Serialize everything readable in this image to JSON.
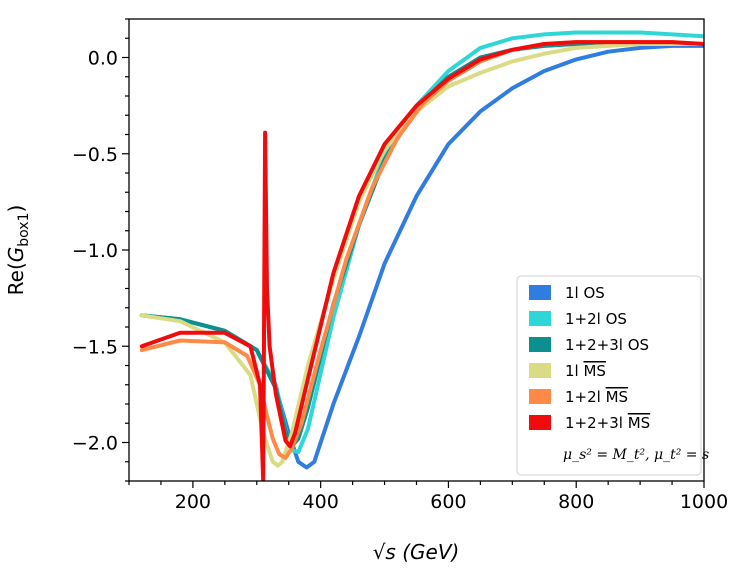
{
  "chart_data": {
    "type": "line",
    "title": "",
    "xlabel": "√s (GeV)",
    "ylabel": "Re(G_box1)",
    "xlim": [
      100,
      1000
    ],
    "ylim": [
      -2.2,
      0.2
    ],
    "x_ticks": [
      200,
      400,
      600,
      800,
      1000
    ],
    "x_tick_labels": [
      "200",
      "400",
      "600",
      "800",
      "1000"
    ],
    "y_ticks": [
      0.0,
      -0.5,
      -1.0,
      -1.5,
      -2.0
    ],
    "y_tick_labels": [
      "0.0",
      "−0.5",
      "−1.0",
      "−1.5",
      "−2.0"
    ],
    "grid": false,
    "legend_position": "bottom-right",
    "legend_note": "μ_s² = M_t², μ_t² = s",
    "series": [
      {
        "name": "1l OS",
        "label_prefix": "1l OS",
        "label_overline": "",
        "color": "#2f7de1",
        "x": [
          120,
          180,
          250,
          300,
          330,
          350,
          365,
          378,
          390,
          420,
          460,
          500,
          550,
          600,
          650,
          700,
          750,
          800,
          850,
          900,
          950,
          1000
        ],
        "y": [
          -1.34,
          -1.36,
          -1.42,
          -1.52,
          -1.72,
          -1.95,
          -2.1,
          -2.13,
          -2.1,
          -1.8,
          -1.45,
          -1.07,
          -0.72,
          -0.45,
          -0.28,
          -0.16,
          -0.07,
          -0.01,
          0.03,
          0.05,
          0.06,
          0.06
        ]
      },
      {
        "name": "1+2l OS",
        "label_prefix": "1+2l OS",
        "label_overline": "",
        "color": "#2fd6d6",
        "x": [
          120,
          180,
          250,
          300,
          330,
          345,
          355,
          365,
          380,
          420,
          460,
          500,
          550,
          600,
          650,
          700,
          750,
          800,
          850,
          900,
          950,
          1000
        ],
        "y": [
          -1.34,
          -1.36,
          -1.42,
          -1.52,
          -1.7,
          -1.93,
          -2.04,
          -2.05,
          -1.93,
          -1.35,
          -0.87,
          -0.5,
          -0.25,
          -0.07,
          0.05,
          0.1,
          0.12,
          0.13,
          0.13,
          0.13,
          0.12,
          0.11
        ]
      },
      {
        "name": "1+2+3l OS",
        "label_prefix": "1+2+3l OS",
        "label_overline": "",
        "color": "#0c8f8f",
        "x": [
          120,
          180,
          250,
          300,
          330,
          345,
          355,
          365,
          380,
          420,
          460,
          500,
          550,
          600,
          650,
          700,
          750,
          800,
          850,
          900,
          950,
          1000
        ],
        "y": [
          -1.34,
          -1.36,
          -1.42,
          -1.52,
          -1.72,
          -1.94,
          -2.02,
          -1.98,
          -1.82,
          -1.28,
          -0.87,
          -0.53,
          -0.26,
          -0.1,
          0.0,
          0.04,
          0.06,
          0.07,
          0.08,
          0.08,
          0.07,
          0.07
        ]
      },
      {
        "name": "1l MS",
        "label_prefix": "1l ",
        "label_overline": "MS",
        "color": "#d9dc84",
        "x": [
          120,
          180,
          250,
          290,
          310,
          325,
          333,
          340,
          355,
          380,
          420,
          460,
          500,
          550,
          600,
          650,
          700,
          750,
          800,
          850,
          900,
          950,
          1000
        ],
        "y": [
          -1.34,
          -1.37,
          -1.48,
          -1.65,
          -1.95,
          -2.1,
          -2.12,
          -2.1,
          -1.95,
          -1.6,
          -1.15,
          -0.75,
          -0.48,
          -0.28,
          -0.15,
          -0.08,
          -0.02,
          0.02,
          0.05,
          0.06,
          0.07,
          0.07,
          0.07
        ]
      },
      {
        "name": "1+2l MS",
        "label_prefix": "1+2l ",
        "label_overline": "MS",
        "color": "#ff8a48",
        "x": [
          120,
          180,
          250,
          285,
          305,
          315,
          325,
          335,
          345,
          355,
          370,
          400,
          440,
          480,
          520,
          560,
          600,
          650,
          700,
          750,
          800,
          850,
          900,
          950,
          1000
        ],
        "y": [
          -1.52,
          -1.47,
          -1.48,
          -1.55,
          -1.7,
          -1.85,
          -1.98,
          -2.06,
          -2.08,
          -2.03,
          -1.9,
          -1.52,
          -1.05,
          -0.68,
          -0.42,
          -0.24,
          -0.12,
          -0.02,
          0.04,
          0.07,
          0.08,
          0.08,
          0.08,
          0.08,
          0.07
        ]
      },
      {
        "name": "1+2+3l MS",
        "label_prefix": "1+2+3l ",
        "label_overline": "MS",
        "color": "#f00c0c",
        "x": [
          120,
          180,
          250,
          290,
          305,
          310,
          313,
          316,
          320,
          330,
          345,
          352,
          360,
          380,
          420,
          460,
          500,
          550,
          600,
          650,
          700,
          750,
          800,
          850,
          900,
          950,
          1000
        ],
        "y": [
          -1.5,
          -1.43,
          -1.43,
          -1.5,
          -1.7,
          -2.2,
          -0.39,
          -1.2,
          -1.5,
          -1.75,
          -1.99,
          -2.02,
          -1.95,
          -1.67,
          -1.12,
          -0.72,
          -0.45,
          -0.25,
          -0.11,
          -0.01,
          0.04,
          0.07,
          0.08,
          0.08,
          0.08,
          0.08,
          0.07
        ]
      }
    ]
  }
}
